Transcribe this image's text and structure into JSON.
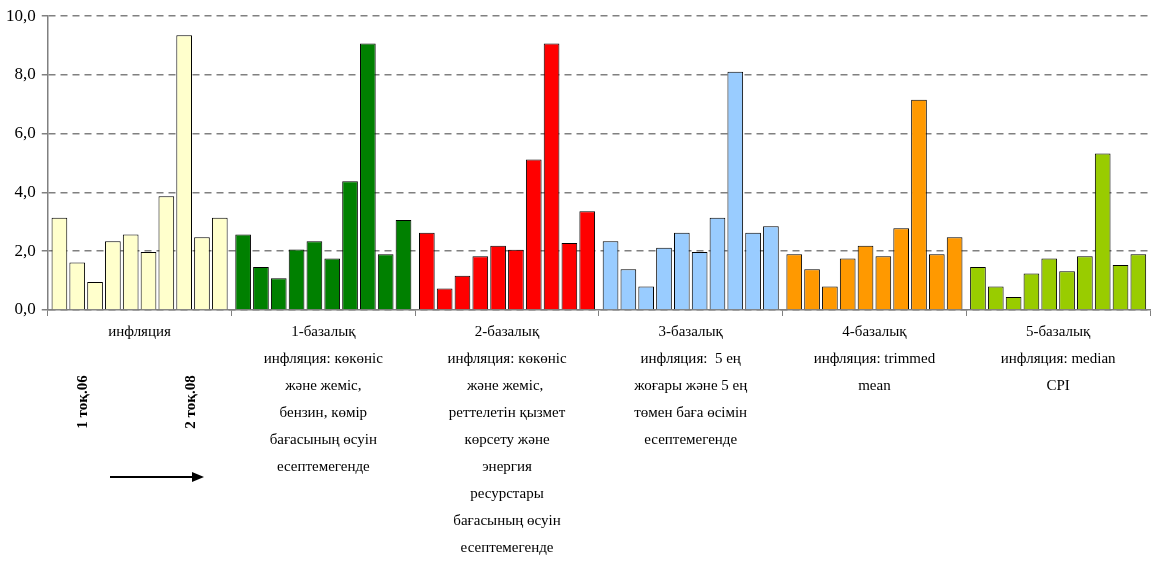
{
  "chart_data": {
    "type": "bar",
    "categories": [
      "инфляция",
      "1-базалық инфляция: көкөніс және жеміс, бензин, көмір бағасының өсуін есептемегенде",
      "2-базалық инфляция: көкөніс және жеміс,  реттелетін қызмет көрсету және энергия ресурстары бағасының өсуін есептемегенде",
      "3-базалық инфляция:  5 ең жоғары және 5 ең төмен баға өсімін есептемегенде",
      "4-базалық инфляция: trimmed mean",
      "5-базалық инфляция: median CPI"
    ],
    "series": [
      {
        "colors": [
          "#ffffcc",
          "#008000",
          "#ff0000",
          "#99ccff",
          "#ff9900",
          "#99cc00"
        ],
        "values": [
          3.14,
          2.57,
          2.63,
          2.34,
          1.9,
          1.46
        ]
      },
      {
        "colors": [
          "#ffffcc",
          "#008000",
          "#ff0000",
          "#99ccff",
          "#ff9900",
          "#99cc00"
        ],
        "values": [
          1.62,
          1.46,
          0.73,
          1.39,
          1.39,
          0.8
        ]
      },
      {
        "colors": [
          "#ffffcc",
          "#008000",
          "#ff0000",
          "#99ccff",
          "#ff9900",
          "#99cc00"
        ],
        "values": [
          0.95,
          1.08,
          1.17,
          0.8,
          0.8,
          0.44
        ]
      },
      {
        "colors": [
          "#ffffcc",
          "#008000",
          "#ff0000",
          "#99ccff",
          "#ff9900",
          "#99cc00"
        ],
        "values": [
          2.34,
          2.06,
          1.83,
          2.12,
          1.75,
          1.24
        ]
      },
      {
        "colors": [
          "#ffffcc",
          "#008000",
          "#ff0000",
          "#99ccff",
          "#ff9900",
          "#99cc00"
        ],
        "values": [
          2.57,
          2.34,
          2.19,
          2.63,
          2.19,
          1.75
        ]
      },
      {
        "colors": [
          "#ffffcc",
          "#008000",
          "#ff0000",
          "#99ccff",
          "#ff9900",
          "#99cc00"
        ],
        "values": [
          1.97,
          1.75,
          2.05,
          1.97,
          1.83,
          1.32
        ]
      },
      {
        "colors": [
          "#ffffcc",
          "#008000",
          "#ff0000",
          "#99ccff",
          "#ff9900",
          "#99cc00"
        ],
        "values": [
          3.87,
          4.38,
          5.12,
          3.14,
          2.78,
          1.83
        ]
      },
      {
        "colors": [
          "#ffffcc",
          "#008000",
          "#ff0000",
          "#99ccff",
          "#ff9900",
          "#99cc00"
        ],
        "values": [
          9.35,
          9.07,
          9.07,
          8.11,
          7.16,
          5.33
        ]
      },
      {
        "colors": [
          "#ffffcc",
          "#008000",
          "#ff0000",
          "#99ccff",
          "#ff9900",
          "#99cc00"
        ],
        "values": [
          2.48,
          1.9,
          2.28,
          2.63,
          1.9,
          1.53
        ]
      },
      {
        "colors": [
          "#ffffcc",
          "#008000",
          "#ff0000",
          "#99ccff",
          "#ff9900",
          "#99cc00"
        ],
        "values": [
          3.14,
          3.06,
          3.36,
          2.85,
          2.48,
          1.9
        ]
      }
    ],
    "ylim": [
      0,
      10
    ],
    "yticks": [
      {
        "value": 0,
        "label": "0,0"
      },
      {
        "value": 2,
        "label": "2,0"
      },
      {
        "value": 4,
        "label": "4,0"
      },
      {
        "value": 6,
        "label": "6,0"
      },
      {
        "value": 8,
        "label": "8,0"
      },
      {
        "value": 10,
        "label": "10,0"
      }
    ],
    "grid": "y",
    "legend": false,
    "annotations": [
      "1 тоқ.06",
      "2 тоқ.08"
    ]
  }
}
